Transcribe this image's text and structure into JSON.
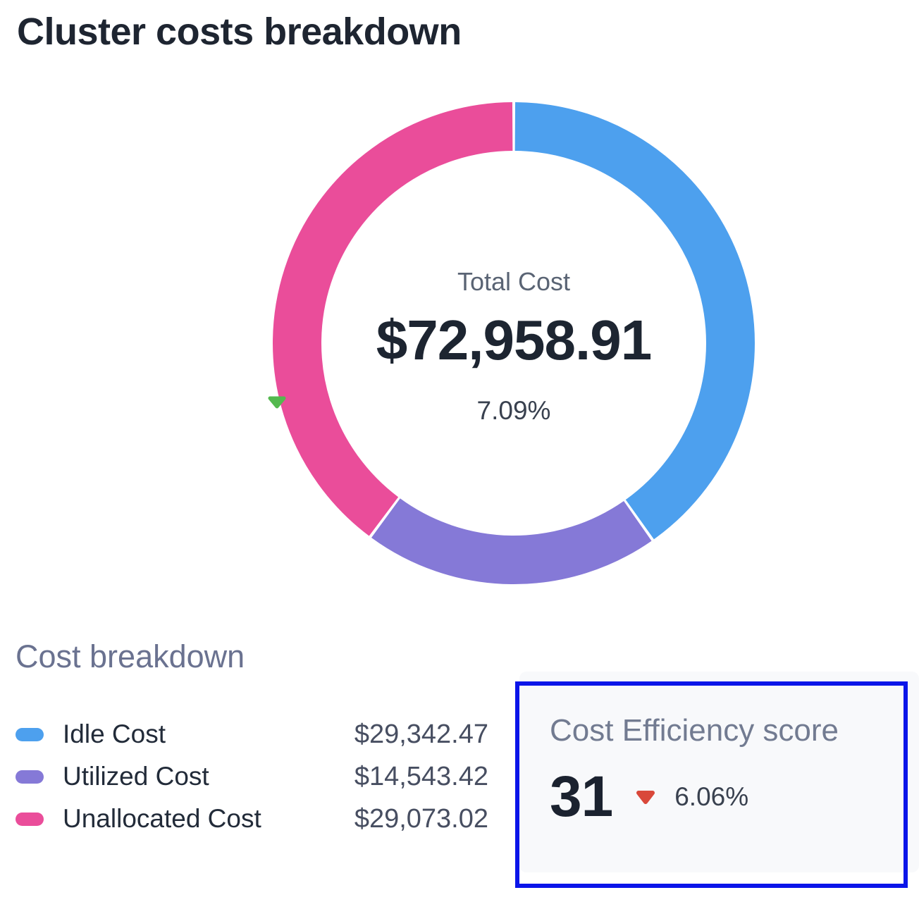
{
  "page": {
    "title": "Cluster costs breakdown"
  },
  "chart_data": {
    "type": "pie",
    "variant": "donut",
    "title": "Cluster costs breakdown",
    "total": 72958.91,
    "start_angle_deg": 0,
    "clockwise": true,
    "legend_position": "bottom-left",
    "legend_title": "Cost breakdown",
    "center": {
      "label": "Total Cost",
      "value": "$72,958.91",
      "change": "7.09%",
      "change_direction": "down",
      "change_trend_color": "#54b94f"
    },
    "segments": [
      {
        "label": "Idle Cost",
        "value": 29342.47,
        "display": "$29,342.47",
        "color": "#4da0ee"
      },
      {
        "label": "Utilized Cost",
        "value": 14543.42,
        "display": "$14,543.42",
        "color": "#8579d7"
      },
      {
        "label": "Unallocated Cost",
        "value": 29073.02,
        "display": "$29,073.02",
        "color": "#ea4d9a"
      }
    ]
  },
  "efficiency_card": {
    "title": "Cost Efficiency score",
    "score": "31",
    "change": "6.06%",
    "change_direction": "down",
    "change_trend_color": "#d9483a",
    "highlight_border_color": "#0b15e9",
    "background_color": "#f8f9fb"
  }
}
